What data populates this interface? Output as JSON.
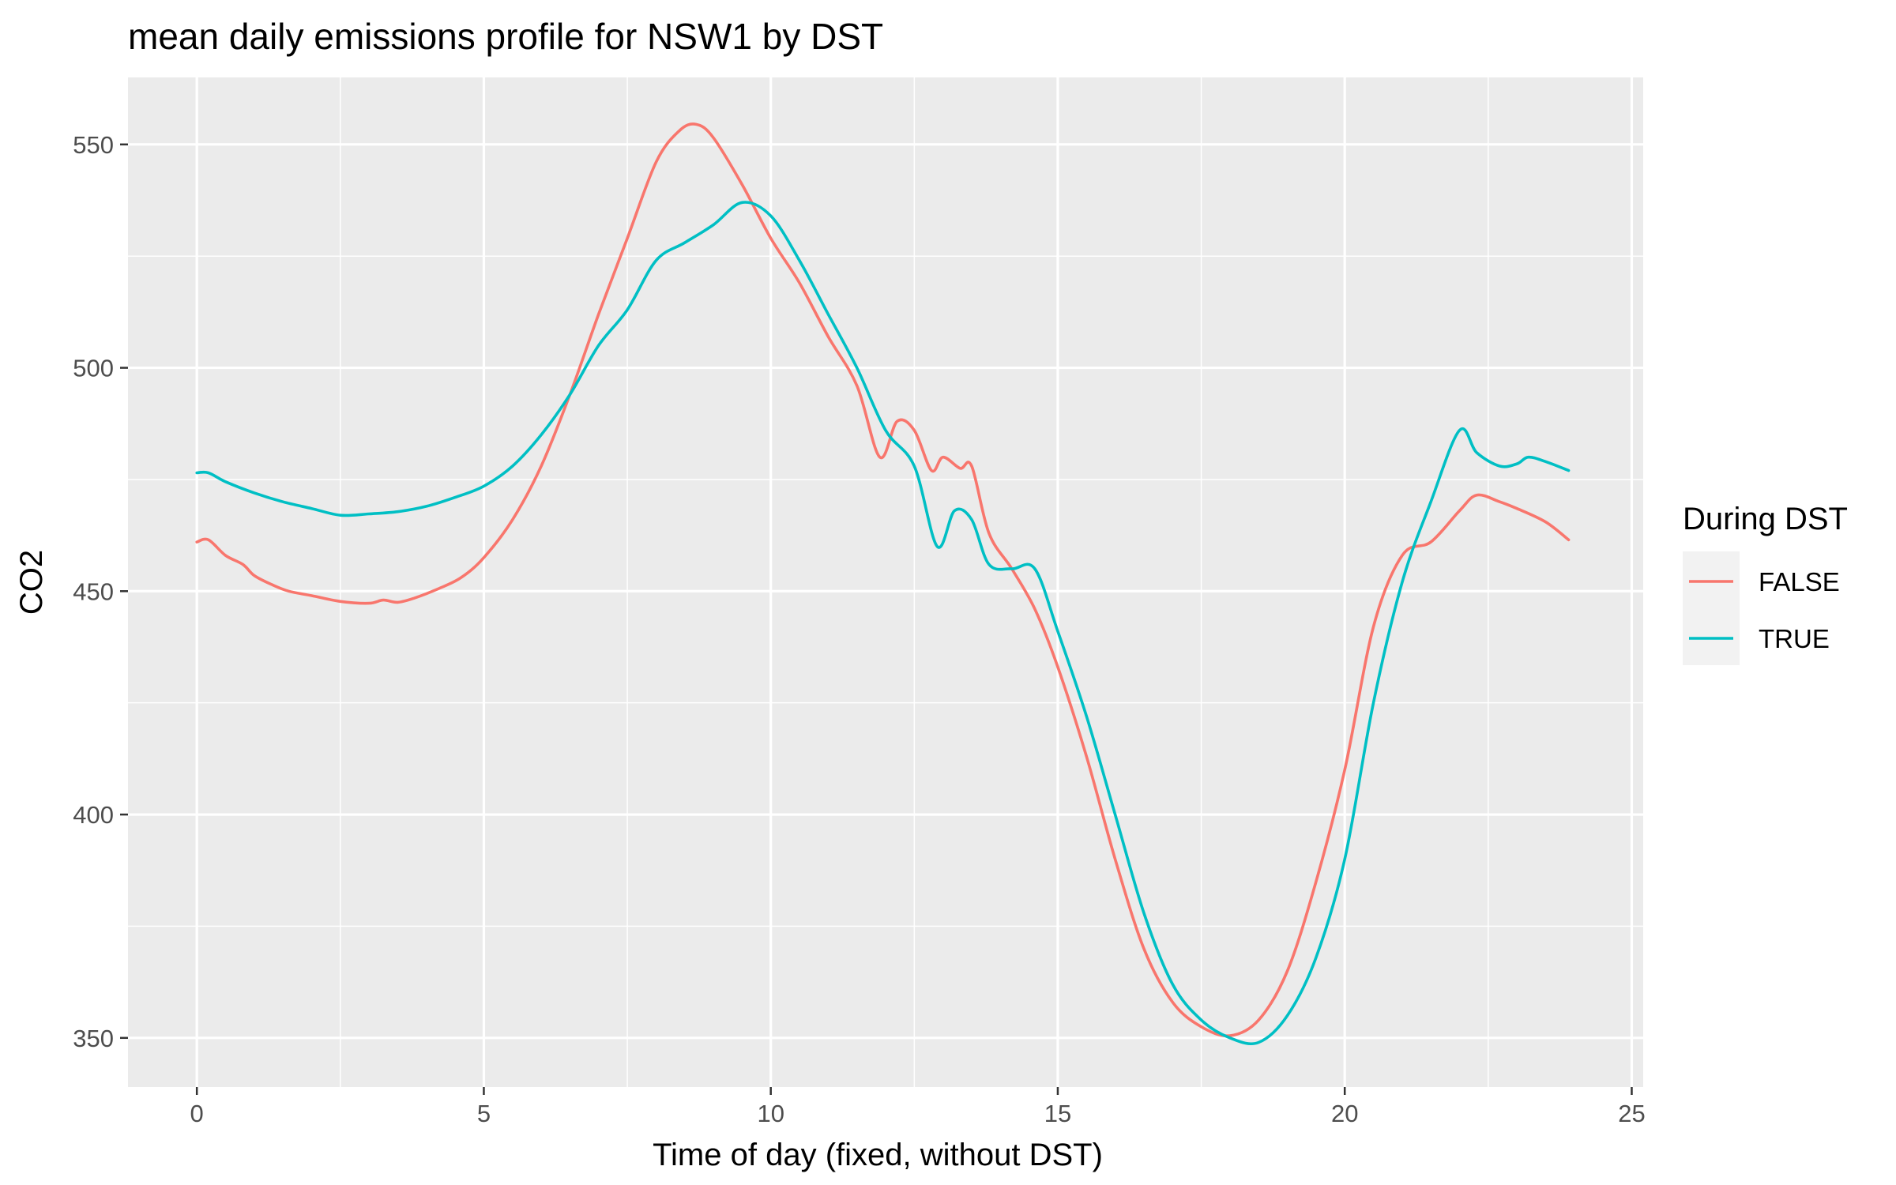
{
  "chart_data": {
    "type": "line",
    "title": "mean daily emissions profile for NSW1 by DST",
    "xlabel": "Time of day (fixed, without DST)",
    "ylabel": "CO2",
    "xlim": [
      -1.2,
      25.2
    ],
    "ylim": [
      339,
      565
    ],
    "x_ticks": [
      0,
      5,
      10,
      15,
      20,
      25
    ],
    "y_ticks": [
      350,
      400,
      450,
      500,
      550
    ],
    "grid": true,
    "legend": {
      "title": "During DST",
      "placement": "right"
    },
    "series": [
      {
        "name": "FALSE",
        "color": "#F8766D",
        "points": [
          [
            0,
            461
          ],
          [
            0.2,
            461.5
          ],
          [
            0.5,
            458
          ],
          [
            0.8,
            456
          ],
          [
            1,
            453.5
          ],
          [
            1.3,
            451.5
          ],
          [
            1.6,
            450
          ],
          [
            2,
            449
          ],
          [
            2.5,
            447.7
          ],
          [
            3,
            447.3
          ],
          [
            3.25,
            448
          ],
          [
            3.5,
            447.5
          ],
          [
            3.8,
            448.5
          ],
          [
            4.2,
            450.5
          ],
          [
            4.6,
            453
          ],
          [
            5,
            457.5
          ],
          [
            5.5,
            466
          ],
          [
            6,
            478
          ],
          [
            6.5,
            494
          ],
          [
            7,
            512
          ],
          [
            7.5,
            529
          ],
          [
            8,
            546
          ],
          [
            8.4,
            553
          ],
          [
            8.7,
            554.5
          ],
          [
            9,
            551.5
          ],
          [
            9.5,
            541
          ],
          [
            10,
            529
          ],
          [
            10.5,
            519
          ],
          [
            11,
            507
          ],
          [
            11.5,
            496
          ],
          [
            11.9,
            480
          ],
          [
            12.2,
            488
          ],
          [
            12.5,
            486
          ],
          [
            12.8,
            477
          ],
          [
            13,
            480
          ],
          [
            13.3,
            477.5
          ],
          [
            13.5,
            478
          ],
          [
            13.8,
            463
          ],
          [
            14.2,
            455
          ],
          [
            14.6,
            446
          ],
          [
            15,
            433
          ],
          [
            15.5,
            413
          ],
          [
            16,
            390
          ],
          [
            16.5,
            370
          ],
          [
            17,
            358
          ],
          [
            17.5,
            352.5
          ],
          [
            18,
            350.5
          ],
          [
            18.5,
            354
          ],
          [
            19,
            365
          ],
          [
            19.5,
            385
          ],
          [
            20,
            410
          ],
          [
            20.5,
            442
          ],
          [
            21,
            458
          ],
          [
            21.5,
            461
          ],
          [
            22,
            468
          ],
          [
            22.3,
            471.5
          ],
          [
            22.7,
            470
          ],
          [
            23,
            468.5
          ],
          [
            23.5,
            465.5
          ],
          [
            23.9,
            461.5
          ]
        ]
      },
      {
        "name": "TRUE",
        "color": "#00BFC4",
        "points": [
          [
            0,
            476.5
          ],
          [
            0.2,
            476.5
          ],
          [
            0.5,
            474.5
          ],
          [
            1,
            472
          ],
          [
            1.5,
            470
          ],
          [
            2,
            468.5
          ],
          [
            2.5,
            467
          ],
          [
            3,
            467.3
          ],
          [
            3.5,
            467.8
          ],
          [
            4,
            469
          ],
          [
            4.5,
            471
          ],
          [
            5,
            473.5
          ],
          [
            5.5,
            478
          ],
          [
            6,
            485
          ],
          [
            6.5,
            494
          ],
          [
            7,
            505
          ],
          [
            7.5,
            513
          ],
          [
            8,
            524
          ],
          [
            8.5,
            528
          ],
          [
            9,
            532
          ],
          [
            9.5,
            537
          ],
          [
            10,
            534
          ],
          [
            10.5,
            524
          ],
          [
            11,
            512
          ],
          [
            11.5,
            500
          ],
          [
            12,
            486
          ],
          [
            12.5,
            478
          ],
          [
            12.9,
            460
          ],
          [
            13.2,
            468
          ],
          [
            13.5,
            466
          ],
          [
            13.8,
            456
          ],
          [
            14.2,
            455
          ],
          [
            14.6,
            455
          ],
          [
            15,
            441
          ],
          [
            15.5,
            422
          ],
          [
            16,
            400
          ],
          [
            16.5,
            378
          ],
          [
            17,
            362
          ],
          [
            17.5,
            354
          ],
          [
            18,
            350
          ],
          [
            18.5,
            349
          ],
          [
            19,
            355
          ],
          [
            19.5,
            368
          ],
          [
            20,
            390
          ],
          [
            20.5,
            425
          ],
          [
            21,
            452
          ],
          [
            21.5,
            470
          ],
          [
            22,
            486
          ],
          [
            22.3,
            481
          ],
          [
            22.7,
            478
          ],
          [
            23,
            478.5
          ],
          [
            23.2,
            480
          ],
          [
            23.5,
            479
          ],
          [
            23.9,
            477
          ]
        ]
      }
    ]
  }
}
